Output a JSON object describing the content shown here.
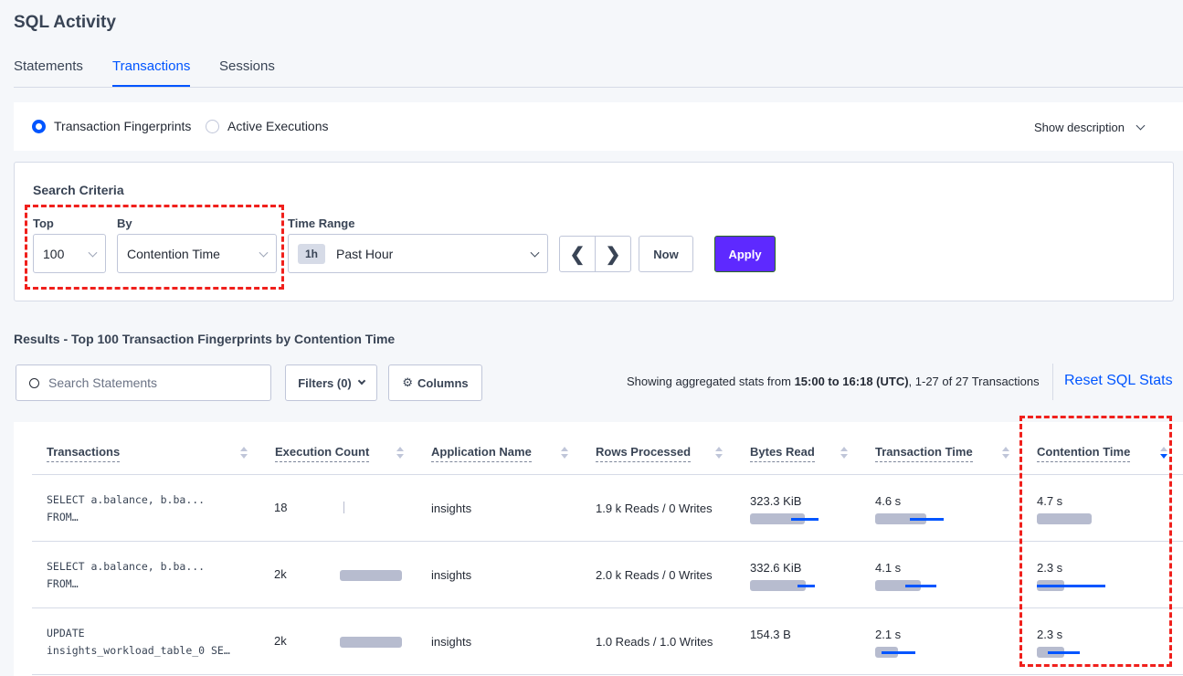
{
  "title": "SQL Activity",
  "tabs": [
    {
      "label": "Statements"
    },
    {
      "label": "Transactions",
      "active": true
    },
    {
      "label": "Sessions"
    }
  ],
  "view": {
    "options": [
      {
        "label": "Transaction Fingerprints",
        "selected": true
      },
      {
        "label": "Active Executions",
        "selected": false
      }
    ],
    "show_description": "Show description"
  },
  "search": {
    "heading": "Search Criteria",
    "top_label": "Top",
    "top_value": "100",
    "by_label": "By",
    "by_value": "Contention Time",
    "range_label": "Time Range",
    "range_badge": "1h",
    "range_value": "Past Hour",
    "now": "Now",
    "apply": "Apply",
    "apply_color": "#5e29ff"
  },
  "results": {
    "title": "Results - Top 100 Transaction Fingerprints by Contention Time",
    "search_placeholder": "Search Statements",
    "filters": "Filters (0)",
    "columns": "Columns",
    "summary_prefix": "Showing aggregated stats from ",
    "summary_range": "15:00 to 16:18 (UTC)",
    "summary_suffix": ", 1-27 of 27 Transactions",
    "reset": "Reset SQL Stats"
  },
  "table": {
    "headers": [
      "Transactions",
      "Execution Count",
      "Application Name",
      "Rows Processed",
      "Bytes Read",
      "Transaction Time",
      "Contention Time"
    ],
    "sorted_column": "Contention Time",
    "rows": [
      {
        "txn_line1": "SELECT a.balance, b.ba...",
        "txn_line2": "FROM…",
        "count": "18",
        "count_bar": 0.0,
        "app": "insights",
        "rows": "1.9 k Reads / 0 Writes",
        "bytes": "323.3 KiB",
        "bytes_bar": [
          0.8,
          0.6,
          1.0
        ],
        "time": "4.6 s",
        "time_bar": [
          0.75,
          0.5,
          1.0
        ],
        "cont": "4.7 s",
        "cont_bar": [
          0.8,
          null,
          null
        ]
      },
      {
        "txn_line1": "SELECT a.balance, b.ba...",
        "txn_line2": "FROM…",
        "count": "2k",
        "count_bar": 0.9,
        "app": "insights",
        "rows": "2.0 k Reads / 0 Writes",
        "bytes": "332.6 KiB",
        "bytes_bar": [
          0.81,
          0.69,
          0.95
        ],
        "time": "4.1 s",
        "time_bar": [
          0.67,
          0.44,
          0.89
        ],
        "cont": "2.3 s",
        "cont_bar": [
          0.4,
          0.0,
          1.0
        ]
      },
      {
        "txn_line1": "UPDATE",
        "txn_line2": "insights_workload_table_0 SE…",
        "count": "2k",
        "count_bar": 0.9,
        "app": "insights",
        "rows": "1.0 Reads / 1.0 Writes",
        "bytes": "154.3 B",
        "bytes_bar": [
          null,
          null,
          null
        ],
        "time": "2.1 s",
        "time_bar": [
          0.33,
          0.09,
          0.59
        ],
        "cont": "2.3 s",
        "cont_bar": [
          0.4,
          0.16,
          0.63
        ]
      }
    ]
  }
}
